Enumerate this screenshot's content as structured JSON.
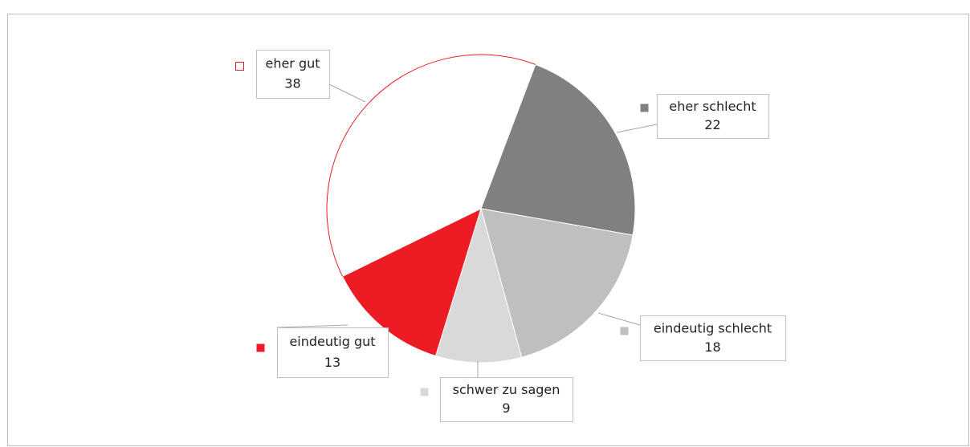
{
  "chart_data": {
    "type": "pie",
    "categories": [
      "eher schlecht",
      "eindeutig schlecht",
      "schwer zu sagen",
      "eindeutig gut",
      "eher gut"
    ],
    "values": [
      22,
      18,
      9,
      13,
      38
    ],
    "colors": [
      "#808080",
      "#bfbfbf",
      "#d9d9d9",
      "#ed1c24",
      "#ffffff"
    ],
    "outline": "#ed1c24"
  }
}
